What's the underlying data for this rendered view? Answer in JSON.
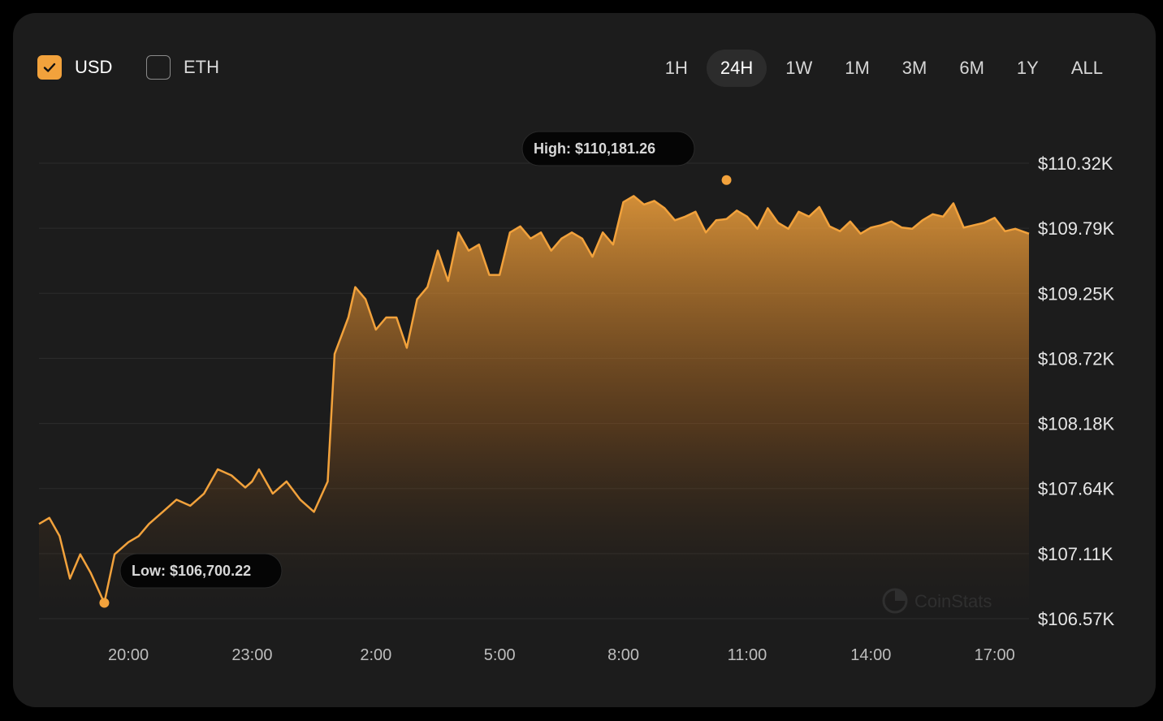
{
  "currency_toggle": [
    {
      "label": "USD",
      "checked": true
    },
    {
      "label": "ETH",
      "checked": false
    }
  ],
  "time_ranges": [
    "1H",
    "24H",
    "1W",
    "1M",
    "3M",
    "6M",
    "1Y",
    "ALL"
  ],
  "selected_range": "24H",
  "colors": {
    "accent": "#f2a23c",
    "card_background": "#1c1c1c",
    "tooltip_background": "#050505",
    "gridline": "#2c2c2c"
  },
  "watermark": "CoinStats",
  "chart_data": {
    "type": "area",
    "y_ticks": [
      "$106.57K",
      "$107.11K",
      "$107.64K",
      "$108.18K",
      "$108.72K",
      "$109.25K",
      "$109.79K",
      "$110.32K"
    ],
    "ylim": [
      106570,
      110320
    ],
    "x_ticks": [
      "20:00",
      "23:00",
      "2:00",
      "5:00",
      "8:00",
      "11:00",
      "14:00",
      "17:00"
    ],
    "xlim": [
      "17:50",
      "17:50 next day"
    ],
    "grid": "horizontal",
    "high": {
      "label": "High: $110,181.26",
      "time": "10:30",
      "value": 110181.26
    },
    "low": {
      "label": "Low: $106,700.22",
      "time": "19:25",
      "value": 106700.22
    },
    "series": [
      {
        "x": [
          "17:50",
          "18:05",
          "18:20",
          "18:35",
          "18:50",
          "19:05",
          "19:25",
          "19:40",
          "20:00",
          "20:15",
          "20:30",
          "20:50",
          "21:10",
          "21:30",
          "21:50",
          "22:10",
          "22:30",
          "22:50",
          "23:00",
          "23:10",
          "23:30",
          "23:50",
          "0:10",
          "0:30",
          "0:50",
          "1:00",
          "1:10",
          "1:20",
          "1:30",
          "1:45",
          "2:00",
          "2:15",
          "2:30",
          "2:45",
          "3:00",
          "3:15",
          "3:30",
          "3:45",
          "4:00",
          "4:15",
          "4:30",
          "4:45",
          "5:00",
          "5:15",
          "5:30",
          "5:45",
          "6:00",
          "6:15",
          "6:30",
          "6:45",
          "7:00",
          "7:15",
          "7:30",
          "7:45",
          "8:00",
          "8:15",
          "8:30",
          "8:45",
          "9:00",
          "9:15",
          "9:30",
          "9:45",
          "10:00",
          "10:15",
          "10:30",
          "10:45",
          "11:00",
          "11:15",
          "11:30",
          "11:45",
          "12:00",
          "12:15",
          "12:30",
          "12:45",
          "13:00",
          "13:15",
          "13:30",
          "13:45",
          "14:00",
          "14:15",
          "14:30",
          "14:45",
          "15:00",
          "15:15",
          "15:30",
          "15:45",
          "16:00",
          "16:15",
          "16:30",
          "16:45",
          "17:00",
          "17:15",
          "17:30",
          "17:50"
        ],
        "y": [
          107350,
          107400,
          107250,
          106900,
          107100,
          106950,
          106700,
          107100,
          107200,
          107250,
          107350,
          107450,
          107550,
          107500,
          107600,
          107800,
          107750,
          107650,
          107700,
          107800,
          107600,
          107700,
          107550,
          107450,
          107700,
          108750,
          108900,
          109050,
          109300,
          109200,
          108950,
          109050,
          109050,
          108800,
          109200,
          109300,
          109600,
          109350,
          109750,
          109600,
          109650,
          109400,
          109400,
          109750,
          109800,
          109700,
          109750,
          109600,
          109700,
          109750,
          109700,
          109550,
          109750,
          109650,
          110000,
          110050,
          109980,
          110010,
          109950,
          109850,
          109880,
          109920,
          109750,
          109850,
          109860,
          109930,
          109880,
          109780,
          109950,
          109830,
          109780,
          109920,
          109880,
          109960,
          109800,
          109760,
          109840,
          109740,
          109790,
          109810,
          109840,
          109790,
          109780,
          109850,
          109900,
          109880,
          109990,
          109790,
          109810,
          109830,
          109870,
          109760,
          109780,
          109740
        ]
      }
    ]
  }
}
